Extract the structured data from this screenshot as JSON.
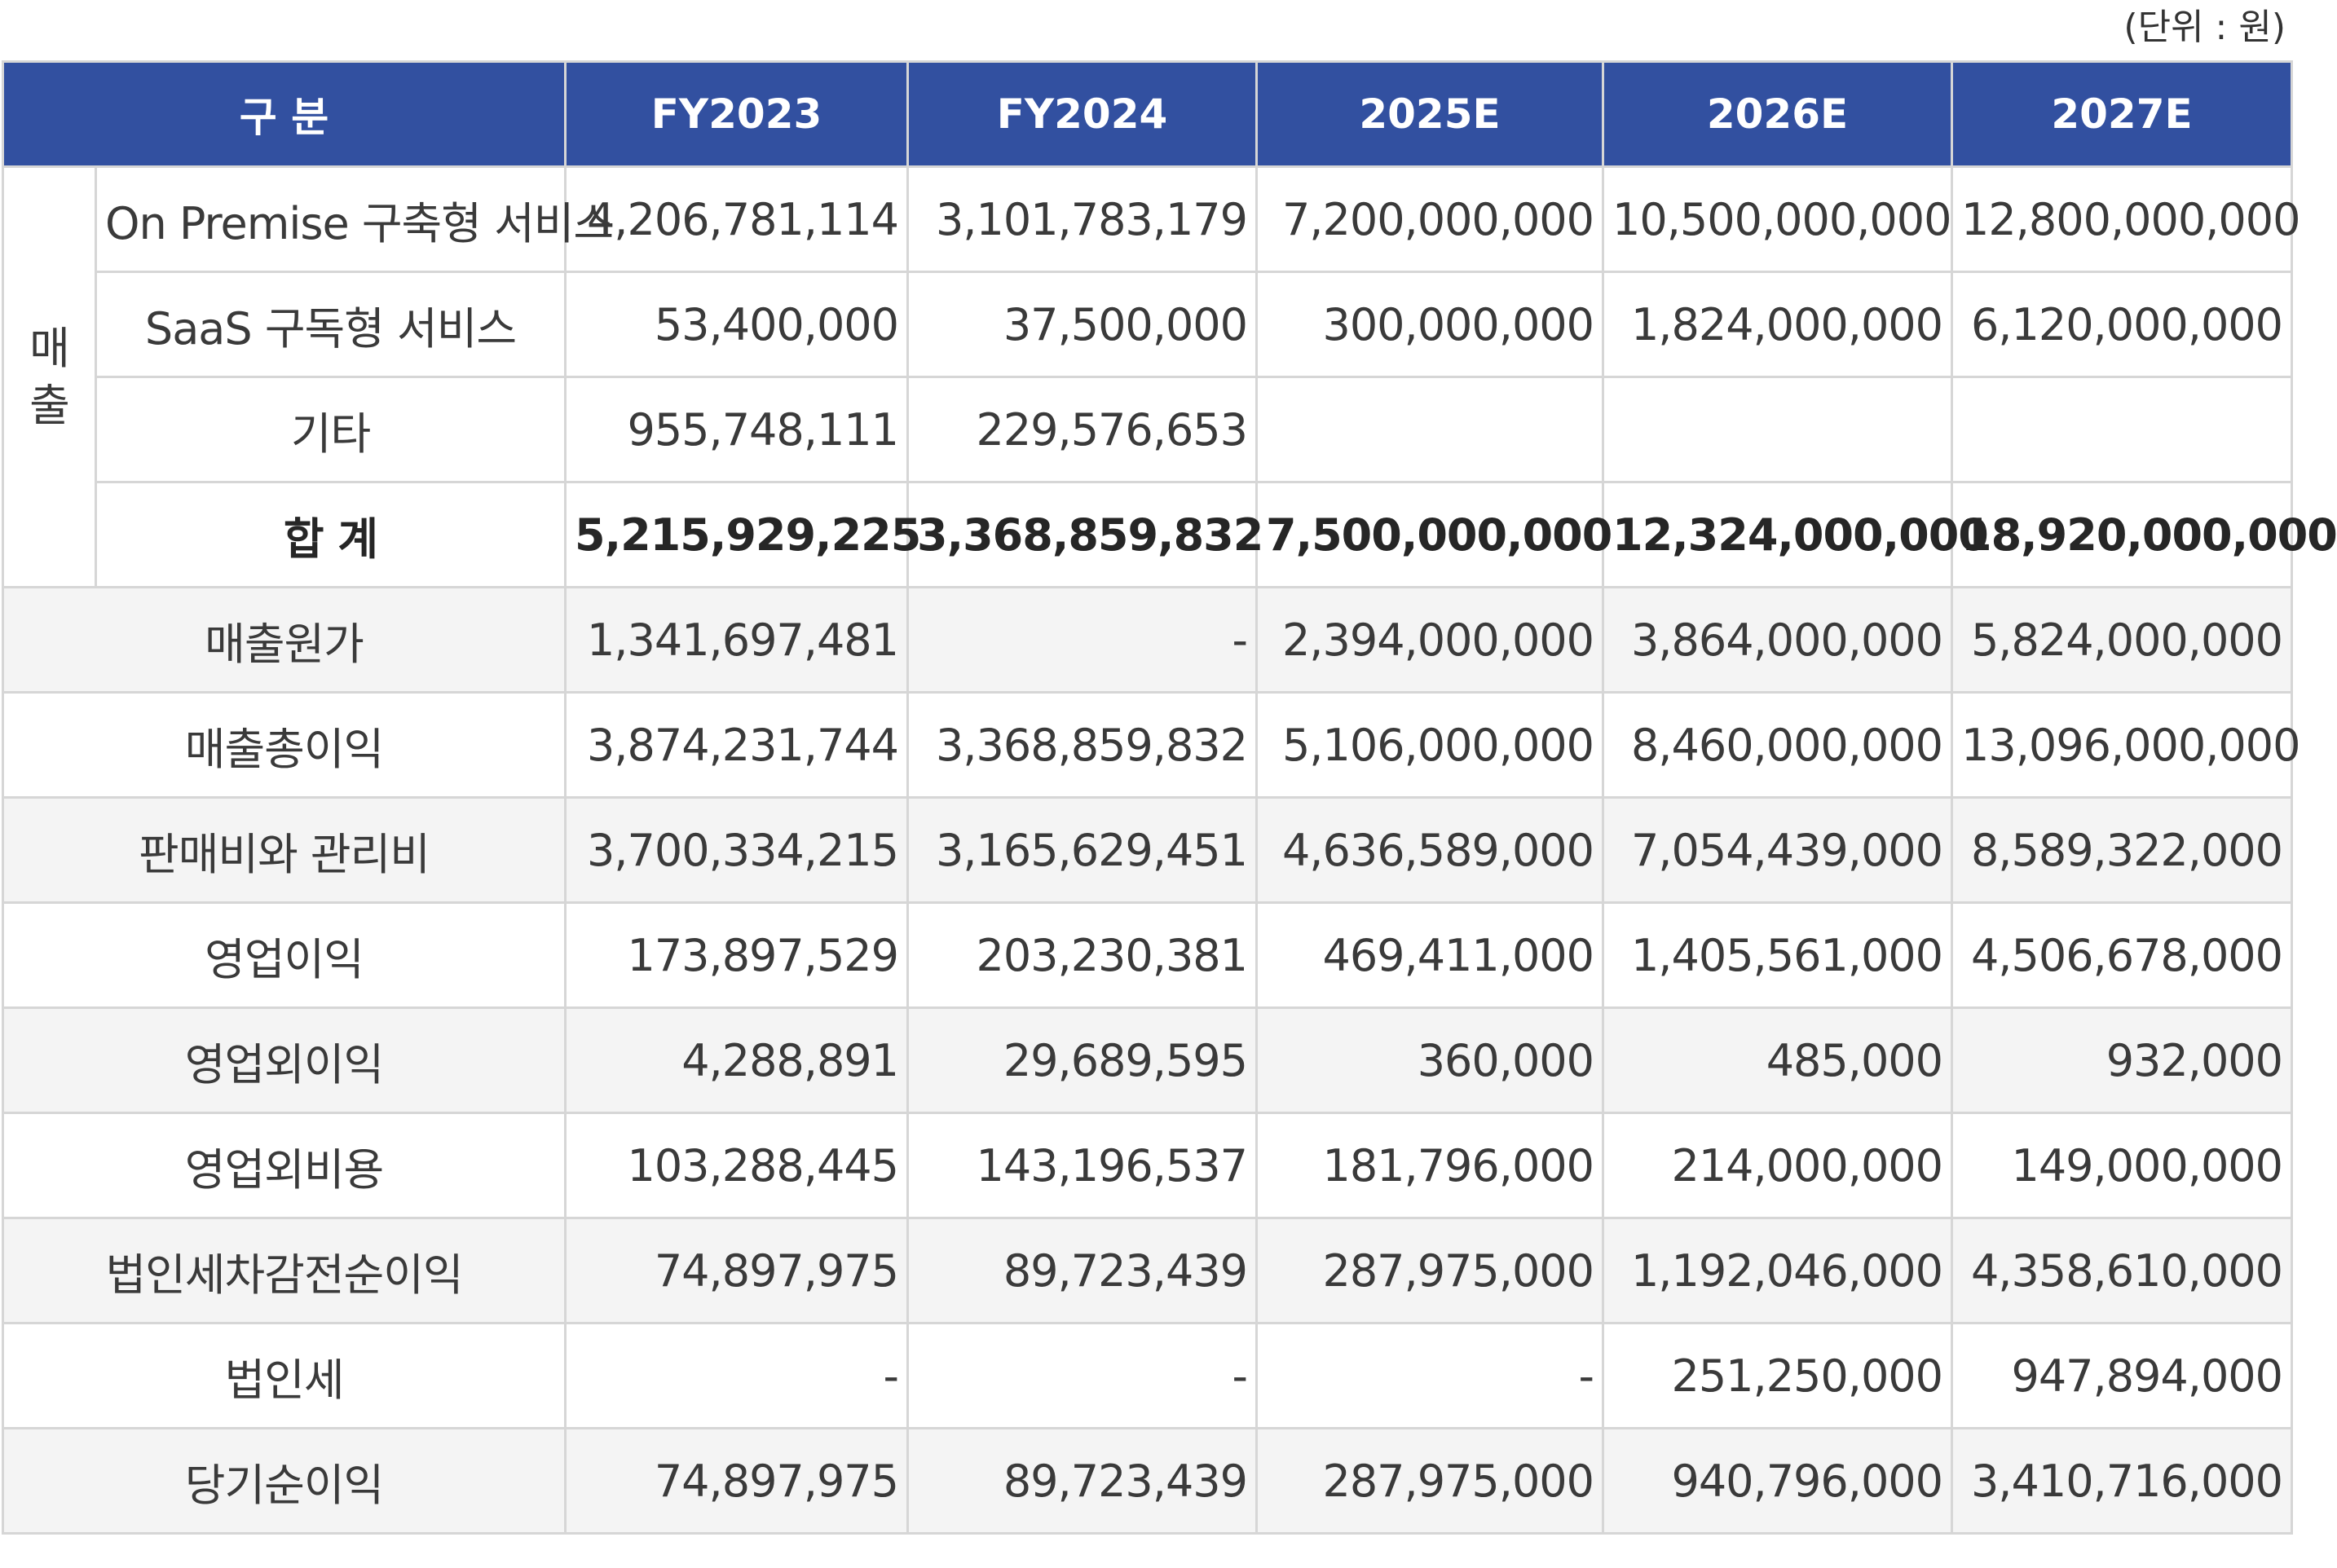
{
  "unit_note": "(단위 : 원)",
  "header": {
    "category": "구 분",
    "years": [
      "FY2023",
      "FY2024",
      "2025E",
      "2026E",
      "2027E"
    ]
  },
  "revenue_group": {
    "label_line1": "매",
    "label_line2": "출",
    "rows": [
      {
        "label": "On Premise 구축형 서비스",
        "values": [
          "4,206,781,114",
          "3,101,783,179",
          "7,200,000,000",
          "10,500,000,000",
          "12,800,000,000"
        ]
      },
      {
        "label": "SaaS 구독형 서비스",
        "values": [
          "53,400,000",
          "37,500,000",
          "300,000,000",
          "1,824,000,000",
          "6,120,000,000"
        ]
      },
      {
        "label": "기타",
        "values": [
          "955,748,111",
          "229,576,653",
          "",
          "",
          ""
        ]
      },
      {
        "label": "합 계",
        "values": [
          "5,215,929,225",
          "3,368,859,832",
          "7,500,000,000",
          "12,324,000,000",
          "18,920,000,000"
        ]
      }
    ]
  },
  "rows": [
    {
      "label": "매출원가",
      "values": [
        "1,341,697,481",
        "-",
        "2,394,000,000",
        "3,864,000,000",
        "5,824,000,000"
      ]
    },
    {
      "label": "매출총이익",
      "values": [
        "3,874,231,744",
        "3,368,859,832",
        "5,106,000,000",
        "8,460,000,000",
        "13,096,000,000"
      ]
    },
    {
      "label": "판매비와 관리비",
      "values": [
        "3,700,334,215",
        "3,165,629,451",
        "4,636,589,000",
        "7,054,439,000",
        "8,589,322,000"
      ]
    },
    {
      "label": "영업이익",
      "values": [
        "173,897,529",
        "203,230,381",
        "469,411,000",
        "1,405,561,000",
        "4,506,678,000"
      ]
    },
    {
      "label": "영업외이익",
      "values": [
        "4,288,891",
        "29,689,595",
        "360,000",
        "485,000",
        "932,000"
      ]
    },
    {
      "label": "영업외비용",
      "values": [
        "103,288,445",
        "143,196,537",
        "181,796,000",
        "214,000,000",
        "149,000,000"
      ]
    },
    {
      "label": "법인세차감전순이익",
      "values": [
        "74,897,975",
        "89,723,439",
        "287,975,000",
        "1,192,046,000",
        "4,358,610,000"
      ]
    },
    {
      "label": "법인세",
      "values": [
        "-",
        "-",
        "-",
        "251,250,000",
        "947,894,000"
      ]
    },
    {
      "label": "당기순이익",
      "values": [
        "74,897,975",
        "89,723,439",
        "287,975,000",
        "940,796,000",
        "3,410,716,000"
      ]
    }
  ],
  "colors": {
    "header_bg": "#3250a0",
    "header_text": "#ffffff",
    "shade_bg": "#f4f4f4",
    "grid": "#d6d6d6"
  }
}
